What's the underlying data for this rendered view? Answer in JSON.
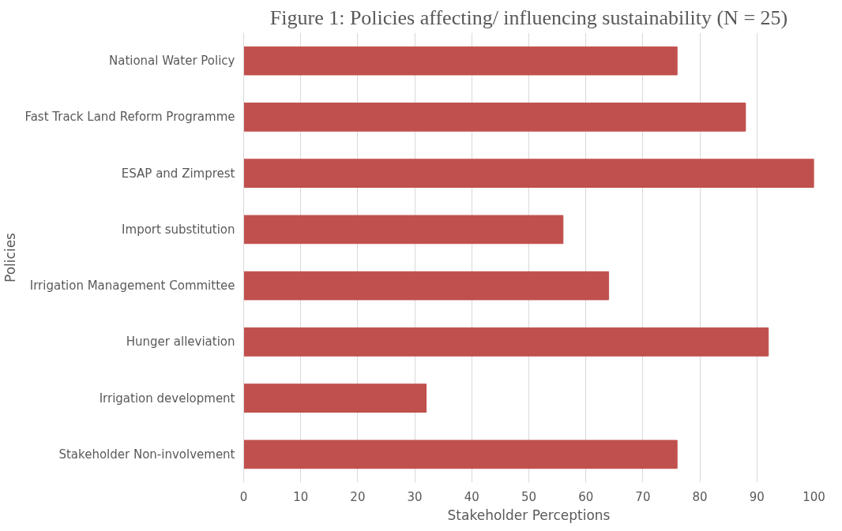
{
  "chart_data": {
    "type": "bar",
    "orientation": "horizontal",
    "title": "Figure 1: Policies affecting/ influencing sustainability (N = 25)",
    "xlabel": "Stakeholder Perceptions",
    "ylabel": "Policies",
    "categories": [
      "National Water Policy",
      "Fast Track Land Reform Programme",
      "ESAP and Zimprest",
      "Import substitution",
      "Irrigation Management Committee",
      "Hunger alleviation",
      "Irrigation development",
      "Stakeholder Non-involvement"
    ],
    "values": [
      76,
      88,
      100,
      56,
      64,
      92,
      32,
      76
    ],
    "color": "#c0504d",
    "xlim": [
      0,
      100
    ],
    "xticks": [
      0,
      10,
      20,
      30,
      40,
      50,
      60,
      70,
      80,
      90,
      100
    ],
    "grid": "x"
  }
}
